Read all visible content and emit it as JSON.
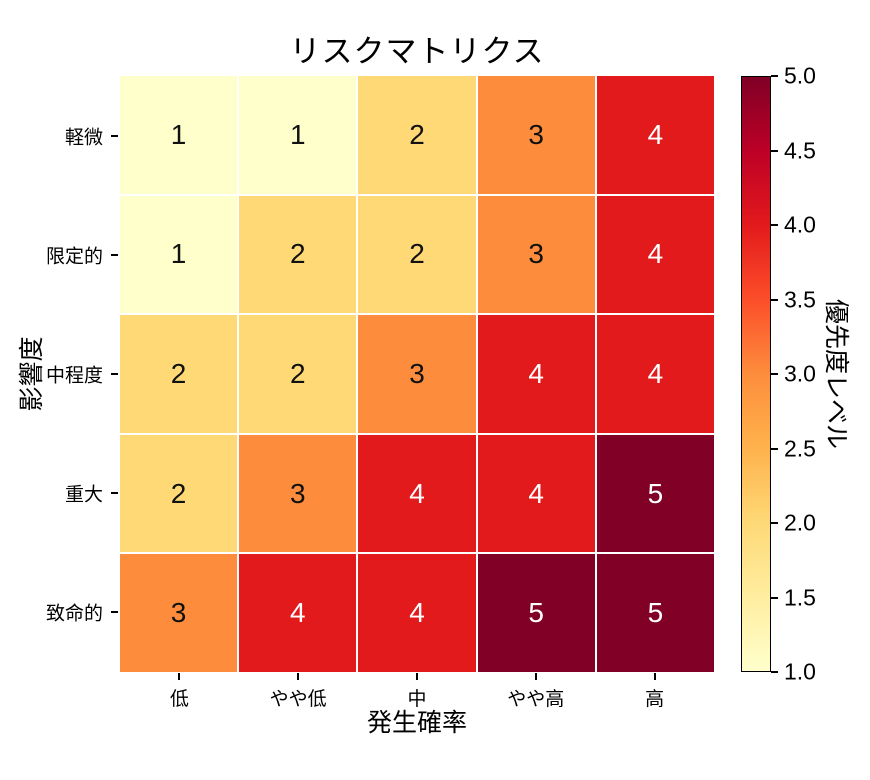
{
  "figure": {
    "background": "#ffffff"
  },
  "chart_data": {
    "type": "heatmap",
    "title": "リスクマトリクス",
    "xlabel": "発生確率",
    "ylabel": "影響度",
    "colorbar_label": "優先度レベル",
    "x_categories": [
      "低",
      "やや低",
      "中",
      "やや高",
      "高"
    ],
    "y_categories": [
      "軽微",
      "限定的",
      "中程度",
      "重大",
      "致命的"
    ],
    "values": [
      [
        1,
        1,
        2,
        3,
        4
      ],
      [
        1,
        2,
        2,
        3,
        4
      ],
      [
        2,
        2,
        3,
        4,
        4
      ],
      [
        2,
        3,
        4,
        4,
        5
      ],
      [
        3,
        4,
        4,
        5,
        5
      ]
    ],
    "value_range": [
      1,
      5
    ],
    "colormap": "YlOrRd",
    "value_colors": {
      "1": "#ffffcc",
      "2": "#fed976",
      "3": "#fd8d3c",
      "4": "#e31a1c",
      "5": "#800026"
    },
    "cell_text_dark": "#111111",
    "cell_text_light": "#ffffff",
    "white_text_threshold": 4,
    "grid_line_color": "#ffffff",
    "colorbar_ticks": [
      5.0,
      4.5,
      4.0,
      3.5,
      3.0,
      2.5,
      2.0,
      1.5,
      1.0
    ],
    "colorbar_tick_labels": [
      "5.0",
      "4.5",
      "4.0",
      "3.5",
      "3.0",
      "2.5",
      "2.0",
      "1.5",
      "1.0"
    ],
    "colorbar_gradient": [
      "#ffffcc",
      "#ffeda0",
      "#fed976",
      "#feb24c",
      "#fd8d3c",
      "#fc4e2a",
      "#e31a1c",
      "#bd0026",
      "#800026"
    ],
    "legend_position": "right",
    "grid": false
  }
}
